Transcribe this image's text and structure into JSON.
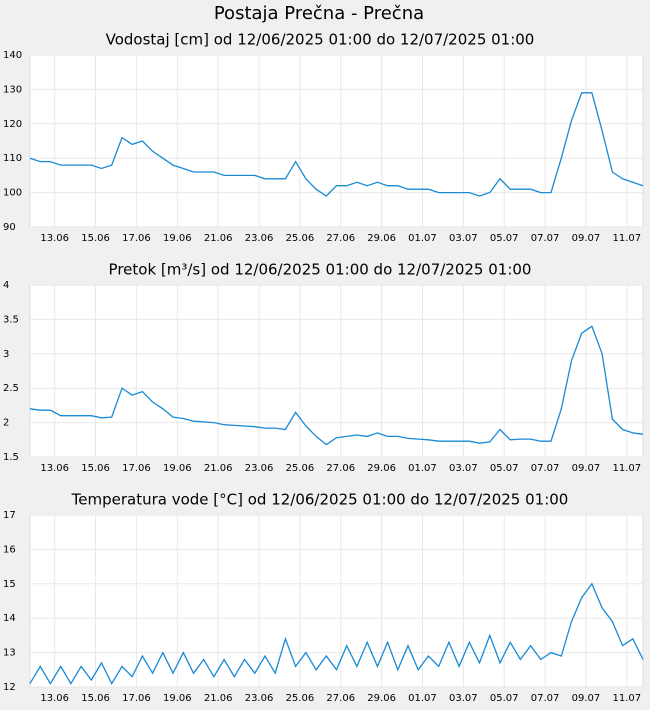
{
  "page_title": "Postaja Prečna - Prečna",
  "chart_data": [
    {
      "type": "line",
      "title": "Vodostaj [cm] od 12/06/2025 01:00 do 12/07/2025 01:00",
      "x": [
        "12/06/2025 01:00",
        "12/06/2025 13:00",
        "13/06/2025 01:00",
        "13/06/2025 13:00",
        "14/06/2025 01:00",
        "14/06/2025 13:00",
        "15/06/2025 01:00",
        "15/06/2025 13:00",
        "16/06/2025 01:00",
        "16/06/2025 13:00",
        "17/06/2025 01:00",
        "17/06/2025 13:00",
        "18/06/2025 01:00",
        "18/06/2025 13:00",
        "19/06/2025 01:00",
        "19/06/2025 13:00",
        "20/06/2025 01:00",
        "20/06/2025 13:00",
        "21/06/2025 01:00",
        "21/06/2025 13:00",
        "22/06/2025 01:00",
        "22/06/2025 13:00",
        "23/06/2025 01:00",
        "23/06/2025 13:00",
        "24/06/2025 01:00",
        "24/06/2025 13:00",
        "25/06/2025 01:00",
        "25/06/2025 13:00",
        "26/06/2025 01:00",
        "26/06/2025 13:00",
        "27/06/2025 01:00",
        "27/06/2025 13:00",
        "28/06/2025 01:00",
        "28/06/2025 13:00",
        "29/06/2025 01:00",
        "29/06/2025 13:00",
        "30/06/2025 01:00",
        "30/06/2025 13:00",
        "01/07/2025 01:00",
        "01/07/2025 13:00",
        "02/07/2025 01:00",
        "02/07/2025 13:00",
        "03/07/2025 01:00",
        "03/07/2025 13:00",
        "04/07/2025 01:00",
        "04/07/2025 13:00",
        "05/07/2025 01:00",
        "05/07/2025 13:00",
        "06/07/2025 01:00",
        "06/07/2025 13:00",
        "07/07/2025 01:00",
        "07/07/2025 13:00",
        "08/07/2025 01:00",
        "08/07/2025 13:00",
        "09/07/2025 01:00",
        "09/07/2025 13:00",
        "10/07/2025 01:00",
        "10/07/2025 13:00",
        "11/07/2025 01:00",
        "11/07/2025 13:00",
        "12/07/2025 01:00"
      ],
      "series": [
        {
          "color": "#1a8ad4",
          "values": [
            110,
            109,
            109,
            108,
            108,
            108,
            108,
            107,
            108,
            116,
            114,
            115,
            112,
            110,
            108,
            107,
            106,
            106,
            106,
            105,
            105,
            105,
            105,
            104,
            104,
            104,
            109,
            104,
            101,
            99,
            102,
            102,
            103,
            102,
            103,
            102,
            102,
            101,
            101,
            101,
            100,
            100,
            100,
            100,
            99,
            100,
            104,
            101,
            101,
            101,
            100,
            100,
            110,
            121,
            129,
            129,
            118,
            106,
            104,
            103,
            102
          ]
        }
      ],
      "xlim": [
        "12/06/2025 01:00",
        "12/07/2025 01:00"
      ],
      "ylim": [
        90,
        140
      ],
      "yticks": [
        90,
        100,
        110,
        120,
        130,
        140
      ],
      "xticks": [
        {
          "value": "13/06/2025 06:00",
          "label": "13.06"
        },
        {
          "value": "15/06/2025 06:00",
          "label": "15.06"
        },
        {
          "value": "17/06/2025 06:00",
          "label": "17.06"
        },
        {
          "value": "19/06/2025 06:00",
          "label": "19.06"
        },
        {
          "value": "21/06/2025 06:00",
          "label": "21.06"
        },
        {
          "value": "23/06/2025 06:00",
          "label": "23.06"
        },
        {
          "value": "25/06/2025 06:00",
          "label": "25.06"
        },
        {
          "value": "27/06/2025 06:00",
          "label": "27.06"
        },
        {
          "value": "29/06/2025 06:00",
          "label": "29.06"
        },
        {
          "value": "01/07/2025 06:00",
          "label": "01.07"
        },
        {
          "value": "03/07/2025 06:00",
          "label": "03.07"
        },
        {
          "value": "05/07/2025 06:00",
          "label": "05.07"
        },
        {
          "value": "07/07/2025 06:00",
          "label": "07.07"
        },
        {
          "value": "09/07/2025 06:00",
          "label": "09.07"
        },
        {
          "value": "11/07/2025 06:00",
          "label": "11.07"
        }
      ],
      "grid": true
    },
    {
      "type": "line",
      "title": "Pretok [m³/s] od 12/06/2025 01:00 do 12/07/2025 01:00",
      "x": [
        "12/06/2025 01:00",
        "12/06/2025 13:00",
        "13/06/2025 01:00",
        "13/06/2025 13:00",
        "14/06/2025 01:00",
        "14/06/2025 13:00",
        "15/06/2025 01:00",
        "15/06/2025 13:00",
        "16/06/2025 01:00",
        "16/06/2025 13:00",
        "17/06/2025 01:00",
        "17/06/2025 13:00",
        "18/06/2025 01:00",
        "18/06/2025 13:00",
        "19/06/2025 01:00",
        "19/06/2025 13:00",
        "20/06/2025 01:00",
        "20/06/2025 13:00",
        "21/06/2025 01:00",
        "21/06/2025 13:00",
        "22/06/2025 01:00",
        "22/06/2025 13:00",
        "23/06/2025 01:00",
        "23/06/2025 13:00",
        "24/06/2025 01:00",
        "24/06/2025 13:00",
        "25/06/2025 01:00",
        "25/06/2025 13:00",
        "26/06/2025 01:00",
        "26/06/2025 13:00",
        "27/06/2025 01:00",
        "27/06/2025 13:00",
        "28/06/2025 01:00",
        "28/06/2025 13:00",
        "29/06/2025 01:00",
        "29/06/2025 13:00",
        "30/06/2025 01:00",
        "30/06/2025 13:00",
        "01/07/2025 01:00",
        "01/07/2025 13:00",
        "02/07/2025 01:00",
        "02/07/2025 13:00",
        "03/07/2025 01:00",
        "03/07/2025 13:00",
        "04/07/2025 01:00",
        "04/07/2025 13:00",
        "05/07/2025 01:00",
        "05/07/2025 13:00",
        "06/07/2025 01:00",
        "06/07/2025 13:00",
        "07/07/2025 01:00",
        "07/07/2025 13:00",
        "08/07/2025 01:00",
        "08/07/2025 13:00",
        "09/07/2025 01:00",
        "09/07/2025 13:00",
        "10/07/2025 01:00",
        "10/07/2025 13:00",
        "11/07/2025 01:00",
        "11/07/2025 13:00",
        "12/07/2025 01:00"
      ],
      "series": [
        {
          "color": "#1a8ad4",
          "values": [
            2.2,
            2.18,
            2.18,
            2.1,
            2.1,
            2.1,
            2.1,
            2.07,
            2.08,
            2.5,
            2.4,
            2.45,
            2.3,
            2.2,
            2.08,
            2.06,
            2.02,
            2.01,
            2.0,
            1.97,
            1.96,
            1.95,
            1.94,
            1.92,
            1.92,
            1.9,
            2.15,
            1.95,
            1.8,
            1.68,
            1.78,
            1.8,
            1.82,
            1.8,
            1.85,
            1.8,
            1.8,
            1.77,
            1.76,
            1.75,
            1.73,
            1.73,
            1.73,
            1.73,
            1.7,
            1.72,
            1.9,
            1.75,
            1.76,
            1.76,
            1.73,
            1.73,
            2.2,
            2.9,
            3.3,
            3.4,
            3.0,
            2.05,
            1.9,
            1.85,
            1.83
          ]
        }
      ],
      "xlim": [
        "12/06/2025 01:00",
        "12/07/2025 01:00"
      ],
      "ylim": [
        1.5,
        4
      ],
      "yticks": [
        1.5,
        2,
        2.5,
        3,
        3.5,
        4
      ],
      "xticks": [
        {
          "value": "13/06/2025 06:00",
          "label": "13.06"
        },
        {
          "value": "15/06/2025 06:00",
          "label": "15.06"
        },
        {
          "value": "17/06/2025 06:00",
          "label": "17.06"
        },
        {
          "value": "19/06/2025 06:00",
          "label": "19.06"
        },
        {
          "value": "21/06/2025 06:00",
          "label": "21.06"
        },
        {
          "value": "23/06/2025 06:00",
          "label": "23.06"
        },
        {
          "value": "25/06/2025 06:00",
          "label": "25.06"
        },
        {
          "value": "27/06/2025 06:00",
          "label": "27.06"
        },
        {
          "value": "29/06/2025 06:00",
          "label": "29.06"
        },
        {
          "value": "01/07/2025 06:00",
          "label": "01.07"
        },
        {
          "value": "03/07/2025 06:00",
          "label": "03.07"
        },
        {
          "value": "05/07/2025 06:00",
          "label": "05.07"
        },
        {
          "value": "07/07/2025 06:00",
          "label": "07.07"
        },
        {
          "value": "09/07/2025 06:00",
          "label": "09.07"
        },
        {
          "value": "11/07/2025 06:00",
          "label": "11.07"
        }
      ],
      "grid": true
    },
    {
      "type": "line",
      "title": "Temperatura vode [°C] od 12/06/2025 01:00 do 12/07/2025 01:00",
      "x": [
        "12/06/2025 01:00",
        "12/06/2025 13:00",
        "13/06/2025 01:00",
        "13/06/2025 13:00",
        "14/06/2025 01:00",
        "14/06/2025 13:00",
        "15/06/2025 01:00",
        "15/06/2025 13:00",
        "16/06/2025 01:00",
        "16/06/2025 13:00",
        "17/06/2025 01:00",
        "17/06/2025 13:00",
        "18/06/2025 01:00",
        "18/06/2025 13:00",
        "19/06/2025 01:00",
        "19/06/2025 13:00",
        "20/06/2025 01:00",
        "20/06/2025 13:00",
        "21/06/2025 01:00",
        "21/06/2025 13:00",
        "22/06/2025 01:00",
        "22/06/2025 13:00",
        "23/06/2025 01:00",
        "23/06/2025 13:00",
        "24/06/2025 01:00",
        "24/06/2025 13:00",
        "25/06/2025 01:00",
        "25/06/2025 13:00",
        "26/06/2025 01:00",
        "26/06/2025 13:00",
        "27/06/2025 01:00",
        "27/06/2025 13:00",
        "28/06/2025 01:00",
        "28/06/2025 13:00",
        "29/06/2025 01:00",
        "29/06/2025 13:00",
        "30/06/2025 01:00",
        "30/06/2025 13:00",
        "01/07/2025 01:00",
        "01/07/2025 13:00",
        "02/07/2025 01:00",
        "02/07/2025 13:00",
        "03/07/2025 01:00",
        "03/07/2025 13:00",
        "04/07/2025 01:00",
        "04/07/2025 13:00",
        "05/07/2025 01:00",
        "05/07/2025 13:00",
        "06/07/2025 01:00",
        "06/07/2025 13:00",
        "07/07/2025 01:00",
        "07/07/2025 13:00",
        "08/07/2025 01:00",
        "08/07/2025 13:00",
        "09/07/2025 01:00",
        "09/07/2025 13:00",
        "10/07/2025 01:00",
        "10/07/2025 13:00",
        "11/07/2025 01:00",
        "11/07/2025 13:00",
        "12/07/2025 01:00"
      ],
      "series": [
        {
          "color": "#1a8ad4",
          "values": [
            12.1,
            12.6,
            12.1,
            12.6,
            12.1,
            12.6,
            12.2,
            12.7,
            12.1,
            12.6,
            12.3,
            12.9,
            12.4,
            13.0,
            12.4,
            13.0,
            12.4,
            12.8,
            12.3,
            12.8,
            12.3,
            12.8,
            12.4,
            12.9,
            12.4,
            13.4,
            12.6,
            13.0,
            12.5,
            12.9,
            12.5,
            13.2,
            12.6,
            13.3,
            12.6,
            13.3,
            12.5,
            13.2,
            12.5,
            12.9,
            12.6,
            13.3,
            12.6,
            13.3,
            12.7,
            13.5,
            12.7,
            13.3,
            12.8,
            13.2,
            12.8,
            13.0,
            12.9,
            13.9,
            14.6,
            15.0,
            14.3,
            13.9,
            13.2,
            13.4,
            12.8
          ]
        }
      ],
      "xlim": [
        "12/06/2025 01:00",
        "12/07/2025 01:00"
      ],
      "ylim": [
        12,
        17
      ],
      "yticks": [
        12,
        13,
        14,
        15,
        16,
        17
      ],
      "xticks": [
        {
          "value": "13/06/2025 06:00",
          "label": "13.06"
        },
        {
          "value": "15/06/2025 06:00",
          "label": "15.06"
        },
        {
          "value": "17/06/2025 06:00",
          "label": "17.06"
        },
        {
          "value": "19/06/2025 06:00",
          "label": "19.06"
        },
        {
          "value": "21/06/2025 06:00",
          "label": "21.06"
        },
        {
          "value": "23/06/2025 06:00",
          "label": "23.06"
        },
        {
          "value": "25/06/2025 06:00",
          "label": "25.06"
        },
        {
          "value": "27/06/2025 06:00",
          "label": "27.06"
        },
        {
          "value": "29/06/2025 06:00",
          "label": "29.06"
        },
        {
          "value": "01/07/2025 06:00",
          "label": "01.07"
        },
        {
          "value": "03/07/2025 06:00",
          "label": "03.07"
        },
        {
          "value": "05/07/2025 06:00",
          "label": "05.07"
        },
        {
          "value": "07/07/2025 06:00",
          "label": "07.07"
        },
        {
          "value": "09/07/2025 06:00",
          "label": "09.07"
        },
        {
          "value": "11/07/2025 06:00",
          "label": "11.07"
        }
      ],
      "grid": true
    }
  ]
}
